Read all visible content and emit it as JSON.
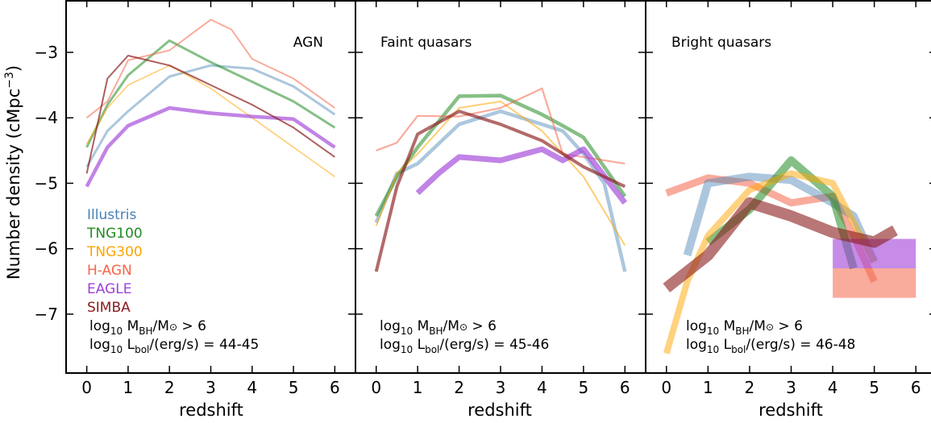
{
  "figure": {
    "ylabel": "Number density (cMpc$^{-3}$)",
    "ylabel_main": "Number density (cMpc",
    "ylabel_sup": "−3",
    "ylabel_close": ")",
    "legend": [
      {
        "name": "Illustris",
        "color": "#4682b4"
      },
      {
        "name": "TNG100",
        "color": "#228b22"
      },
      {
        "name": "TNG300",
        "color": "#ffa500"
      },
      {
        "name": "H-AGN",
        "color": "#f4664a"
      },
      {
        "name": "EAGLE",
        "color": "#a040d8"
      },
      {
        "name": "SIMBA",
        "color": "#8b1a1a"
      }
    ]
  },
  "chart_data": [
    {
      "type": "line",
      "title": "AGN",
      "xlabel": "redshift",
      "ylabel": "Number density (cMpc^-3)",
      "xlim": [
        -0.5,
        6.5
      ],
      "ylim": [
        -7.9,
        -2.2
      ],
      "xticks": [
        "0",
        "1",
        "2",
        "3",
        "4",
        "5",
        "6"
      ],
      "yticks": [
        "−3",
        "−4",
        "−5",
        "−6",
        "−7"
      ],
      "annotation": [
        "log",
        "10",
        " M",
        "BH",
        "/M",
        "⊙",
        " > 6",
        "log",
        "10",
        " L",
        "bol",
        "/(erg/s) = 44-45"
      ],
      "series": [
        {
          "name": "Illustris",
          "x": [
            0,
            0.5,
            1,
            2,
            3,
            4,
            5,
            6
          ],
          "y": [
            -4.75,
            -4.2,
            -3.9,
            -3.37,
            -3.2,
            -3.25,
            -3.52,
            -3.95
          ],
          "color": "#4682b4",
          "width": 3,
          "opacity": 0.45
        },
        {
          "name": "TNG100",
          "x": [
            0,
            0.5,
            1,
            2,
            3,
            4,
            5,
            6
          ],
          "y": [
            -4.45,
            -3.8,
            -3.35,
            -2.82,
            -3.15,
            -3.45,
            -3.75,
            -4.15
          ],
          "color": "#228b22",
          "width": 3,
          "opacity": 0.55
        },
        {
          "name": "TNG300",
          "x": [
            0,
            0.5,
            1,
            2,
            3,
            4,
            5,
            6
          ],
          "y": [
            -4.4,
            -3.85,
            -3.5,
            -3.2,
            -3.55,
            -4.0,
            -4.45,
            -4.9
          ],
          "color": "#ffa500",
          "width": 1.6,
          "opacity": 0.55
        },
        {
          "name": "H-AGN",
          "x": [
            0,
            0.5,
            1,
            2,
            3,
            3.5,
            4,
            5,
            6
          ],
          "y": [
            -4.0,
            -3.75,
            -3.12,
            -2.97,
            -2.5,
            -2.65,
            -3.1,
            -3.4,
            -3.85
          ],
          "color": "#f4664a",
          "width": 2,
          "opacity": 0.55
        },
        {
          "name": "EAGLE",
          "x": [
            0,
            0.5,
            1,
            2,
            3,
            4,
            5,
            6
          ],
          "y": [
            -5.05,
            -4.45,
            -4.12,
            -3.85,
            -3.93,
            -3.98,
            -4.02,
            -4.45
          ],
          "color": "#a040d8",
          "width": 4.5,
          "opacity": 0.65
        },
        {
          "name": "SIMBA",
          "x": [
            0,
            0.5,
            1,
            2,
            3,
            4,
            5,
            6
          ],
          "y": [
            -4.85,
            -3.4,
            -3.05,
            -3.2,
            -3.5,
            -3.8,
            -4.15,
            -4.6
          ],
          "color": "#8b1a1a",
          "width": 2,
          "opacity": 0.7
        }
      ]
    },
    {
      "type": "line",
      "title": "Faint quasars",
      "xlabel": "redshift",
      "ylabel": "Number density (cMpc^-3)",
      "xlim": [
        -0.5,
        6.5
      ],
      "ylim": [
        -7.9,
        -2.2
      ],
      "xticks": [
        "0",
        "1",
        "2",
        "3",
        "4",
        "5",
        "6"
      ],
      "yticks": [
        "−3",
        "−4",
        "−5",
        "−6",
        "−7"
      ],
      "annotation": [
        "log",
        "10",
        " M",
        "BH",
        "/M",
        "⊙",
        " > 6",
        "log",
        "10",
        " L",
        "bol",
        "/(erg/s) = 45-46"
      ],
      "series": [
        {
          "name": "Illustris",
          "x": [
            0,
            0.5,
            1,
            2,
            3,
            4,
            4.5,
            5,
            5.5,
            6
          ],
          "y": [
            -5.6,
            -4.85,
            -4.7,
            -4.1,
            -3.9,
            -4.1,
            -4.2,
            -4.55,
            -5.0,
            -6.35
          ],
          "color": "#4682b4",
          "width": 4.5,
          "opacity": 0.45
        },
        {
          "name": "TNG100",
          "x": [
            0,
            0.5,
            1,
            2,
            3,
            4,
            4.5,
            5,
            6
          ],
          "y": [
            -5.5,
            -4.9,
            -4.45,
            -3.67,
            -3.66,
            -3.95,
            -4.12,
            -4.3,
            -5.2
          ],
          "color": "#228b22",
          "width": 4.5,
          "opacity": 0.55
        },
        {
          "name": "TNG300",
          "x": [
            0,
            0.5,
            1,
            2,
            3,
            4,
            5,
            6
          ],
          "y": [
            -5.65,
            -4.85,
            -4.55,
            -3.85,
            -3.75,
            -4.2,
            -4.9,
            -5.95
          ],
          "color": "#ffa500",
          "width": 2,
          "opacity": 0.55
        },
        {
          "name": "H-AGN",
          "x": [
            0,
            0.5,
            1,
            2,
            3,
            4,
            4.5,
            5,
            6
          ],
          "y": [
            -4.5,
            -4.38,
            -3.97,
            -3.98,
            -3.85,
            -3.55,
            -4.55,
            -4.6,
            -4.7
          ],
          "color": "#f4664a",
          "width": 2.2,
          "opacity": 0.55
        },
        {
          "name": "EAGLE",
          "x": [
            1,
            1.5,
            2,
            3,
            4,
            4.5,
            5,
            6
          ],
          "y": [
            -5.15,
            -4.85,
            -4.6,
            -4.65,
            -4.48,
            -4.65,
            -4.48,
            -5.3
          ],
          "color": "#a040d8",
          "width": 7,
          "opacity": 0.65
        },
        {
          "name": "SIMBA",
          "x": [
            0,
            0.5,
            1,
            2,
            3,
            4,
            5,
            6
          ],
          "y": [
            -6.35,
            -5.05,
            -4.25,
            -3.9,
            -4.1,
            -4.35,
            -4.75,
            -5.05
          ],
          "color": "#8b1a1a",
          "width": 4,
          "opacity": 0.65
        }
      ]
    },
    {
      "type": "area",
      "title": "Bright quasars",
      "xlabel": "redshift",
      "ylabel": "Number density (cMpc^-3)",
      "xlim": [
        -0.5,
        6.5
      ],
      "ylim": [
        -7.9,
        -2.2
      ],
      "xticks": [
        "0",
        "1",
        "2",
        "3",
        "4",
        "5",
        "6"
      ],
      "yticks": [
        "−3",
        "−4",
        "−5",
        "−6",
        "−7"
      ],
      "annotation": [
        "log",
        "10",
        " M",
        "BH",
        "/M",
        "⊙",
        " > 6",
        "log",
        "10",
        " L",
        "bol",
        "/(erg/s) = 46-48"
      ],
      "series": [
        {
          "name": "H-AGN",
          "x": [
            0,
            1,
            2,
            3,
            4,
            4.5,
            5
          ],
          "y": [
            -5.15,
            -4.92,
            -5.0,
            -5.3,
            -5.2,
            -5.8,
            -6.5
          ],
          "color": "#f4664a",
          "width": 9,
          "opacity": 0.55
        },
        {
          "name": "H-AGN box",
          "x": [
            4,
            6
          ],
          "y_low": [
            -6.75,
            -6.75
          ],
          "y_high": [
            -6.3,
            -6.3
          ],
          "color": "#f4664a",
          "opacity": 0.55
        },
        {
          "name": "Illustris",
          "x": [
            0.5,
            1,
            2,
            3,
            4,
            4.5,
            5
          ],
          "y": [
            -6.1,
            -5.0,
            -4.9,
            -4.95,
            -5.3,
            -5.5,
            -6.2
          ],
          "color": "#4682b4",
          "width": 10,
          "opacity": 0.45
        },
        {
          "name": "TNG100",
          "x": [
            1,
            2,
            3,
            4,
            4.5
          ],
          "y": [
            -5.9,
            -5.4,
            -4.65,
            -5.2,
            -6.3
          ],
          "color": "#228b22",
          "width": 10,
          "opacity": 0.55
        },
        {
          "name": "TNG300",
          "x": [
            0,
            0.5,
            1,
            2,
            3,
            4,
            5
          ],
          "y": [
            -7.6,
            -6.5,
            -5.8,
            -5.1,
            -4.85,
            -5.0,
            -6.2
          ],
          "color": "#ffa500",
          "width": 8,
          "opacity": 0.5
        },
        {
          "name": "EAGLE box",
          "x": [
            4,
            6
          ],
          "y_low": [
            -6.3,
            -6.3
          ],
          "y_high": [
            -5.85,
            -5.85
          ],
          "color": "#a040d8",
          "opacity": 0.6
        },
        {
          "name": "SIMBA",
          "x": [
            0,
            1,
            2,
            3,
            4,
            5,
            5.5
          ],
          "y": [
            -6.6,
            -6.1,
            -5.3,
            -5.5,
            -5.75,
            -5.9,
            -5.72
          ],
          "color": "#8b1a1a",
          "width": 14,
          "opacity": 0.6
        }
      ]
    }
  ]
}
